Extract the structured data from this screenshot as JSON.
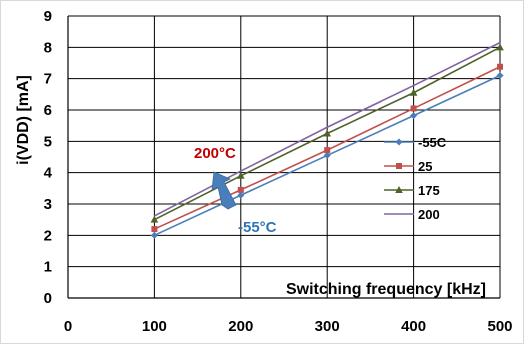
{
  "chart_data": {
    "type": "line",
    "x": [
      100,
      200,
      300,
      400,
      500
    ],
    "series": [
      {
        "name": "-55C",
        "color": "#4a7ebb",
        "marker": "diamond",
        "values": [
          2.0,
          3.28,
          4.55,
          5.82,
          7.1
        ]
      },
      {
        "name": "25",
        "color": "#c0504d",
        "marker": "square",
        "values": [
          2.2,
          3.45,
          4.72,
          6.05,
          7.38
        ]
      },
      {
        "name": "175",
        "color": "#4f6228",
        "marker": "triangle",
        "values": [
          2.5,
          3.9,
          5.25,
          6.55,
          8.0
        ]
      },
      {
        "name": "200",
        "color": "#8064a2",
        "marker": "none",
        "values": [
          2.62,
          4.05,
          5.45,
          6.78,
          8.15
        ]
      }
    ],
    "xlabel": "Switching frequency [kHz]",
    "ylabel": "i(VDD) [mA]",
    "xticks": [
      "0",
      "100",
      "200",
      "300",
      "400",
      "500"
    ],
    "yticks": [
      "0",
      "1",
      "2",
      "3",
      "4",
      "5",
      "6",
      "7",
      "8",
      "9"
    ],
    "xlim": [
      0,
      500
    ],
    "ylim": [
      0,
      9
    ],
    "grid": true,
    "legend_position": "right",
    "annotations": [
      {
        "text": "200°C",
        "color": "#c00000"
      },
      {
        "text": "-55°C",
        "color": "#2e75b6"
      }
    ],
    "arrow_color": "#4a7ebb"
  }
}
